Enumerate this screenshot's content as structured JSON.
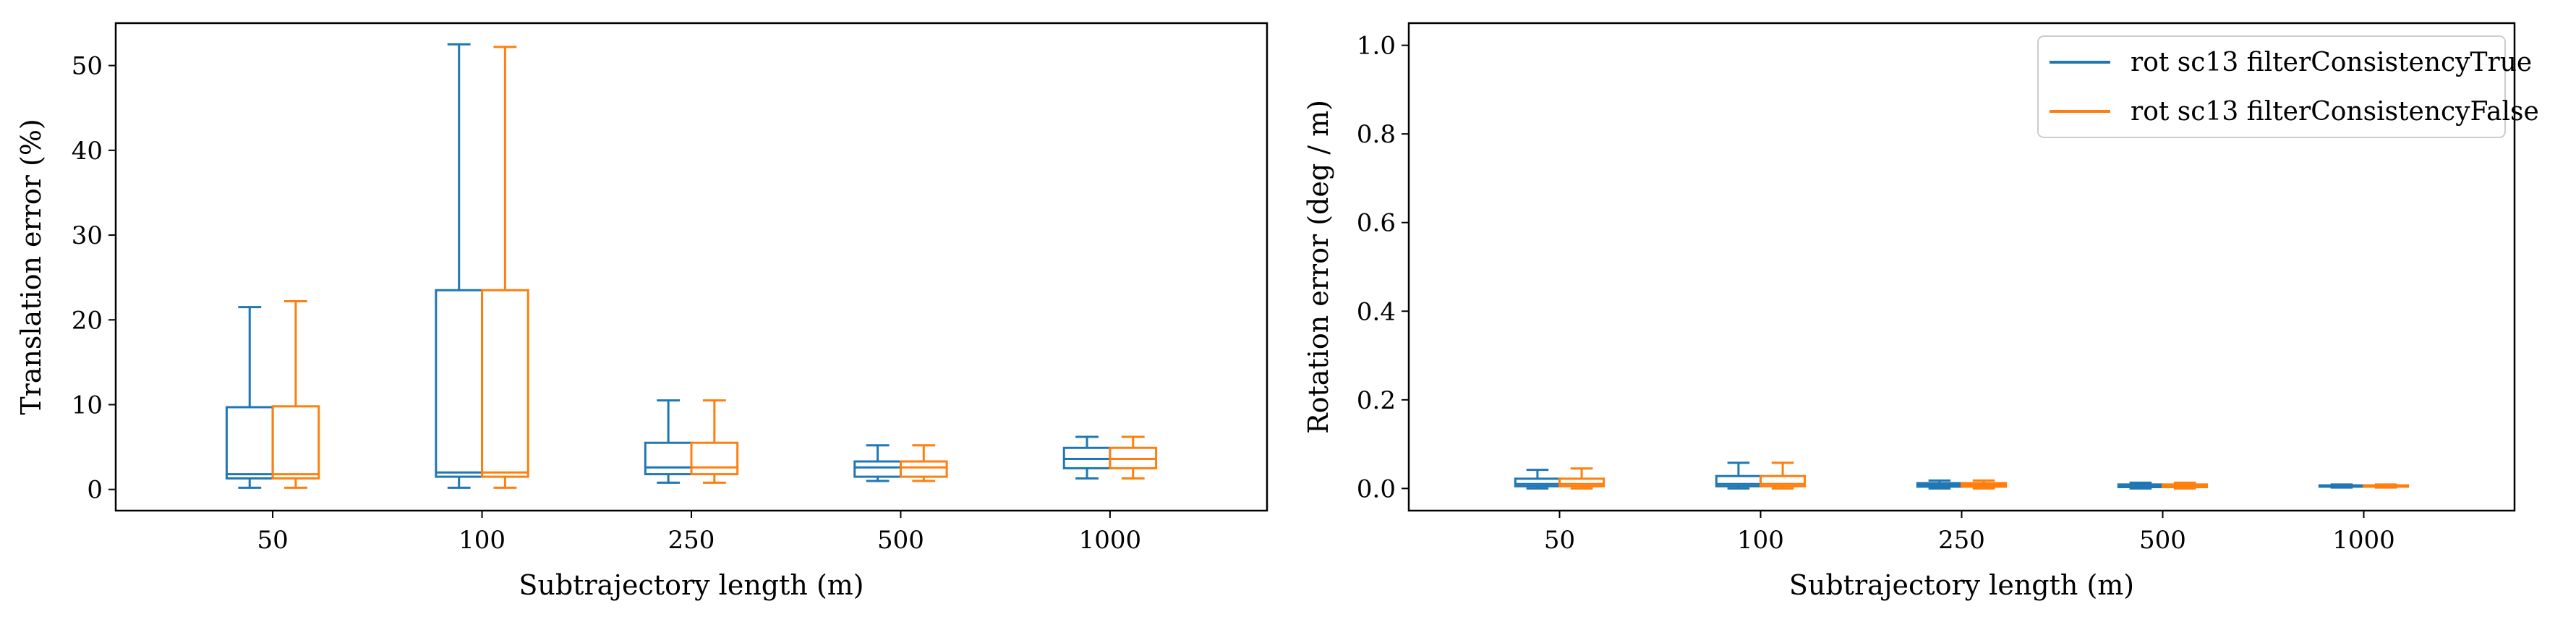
{
  "chart_data": [
    {
      "type": "boxplot",
      "xlabel": "Subtrajectory length (m)",
      "ylabel": "Translation error (%)",
      "categories": [
        "50",
        "100",
        "250",
        "500",
        "1000"
      ],
      "ylim": [
        -2.5,
        55
      ],
      "yticks": [
        0,
        10,
        20,
        30,
        40,
        50
      ],
      "grid": false,
      "series": [
        {
          "color": "#1f77b4",
          "boxes": [
            {
              "whislo": 0.2,
              "q1": 1.3,
              "med": 1.8,
              "q3": 9.7,
              "whishi": 21.5
            },
            {
              "whislo": 0.2,
              "q1": 1.5,
              "med": 2.0,
              "q3": 23.5,
              "whishi": 52.5
            },
            {
              "whislo": 0.8,
              "q1": 1.8,
              "med": 2.6,
              "q3": 5.5,
              "whishi": 10.5
            },
            {
              "whislo": 1.0,
              "q1": 1.5,
              "med": 2.6,
              "q3": 3.3,
              "whishi": 5.2
            },
            {
              "whislo": 1.3,
              "q1": 2.5,
              "med": 3.6,
              "q3": 4.9,
              "whishi": 6.2
            }
          ]
        },
        {
          "color": "#ff7f0e",
          "boxes": [
            {
              "whislo": 0.2,
              "q1": 1.3,
              "med": 1.8,
              "q3": 9.8,
              "whishi": 22.2
            },
            {
              "whislo": 0.2,
              "q1": 1.5,
              "med": 2.0,
              "q3": 23.5,
              "whishi": 52.2
            },
            {
              "whislo": 0.8,
              "q1": 1.8,
              "med": 2.6,
              "q3": 5.5,
              "whishi": 10.5
            },
            {
              "whislo": 1.0,
              "q1": 1.5,
              "med": 2.6,
              "q3": 3.3,
              "whishi": 5.2
            },
            {
              "whislo": 1.3,
              "q1": 2.5,
              "med": 3.6,
              "q3": 4.9,
              "whishi": 6.2
            }
          ]
        }
      ]
    },
    {
      "type": "boxplot",
      "xlabel": "Subtrajectory length (m)",
      "ylabel": "Rotation error (deg / m)",
      "categories": [
        "50",
        "100",
        "250",
        "500",
        "1000"
      ],
      "ylim": [
        -0.05,
        1.05
      ],
      "yticks": [
        "0.0",
        "0.2",
        "0.4",
        "0.6",
        "0.8",
        "1.0"
      ],
      "grid": false,
      "legend_position": "upper right",
      "series": [
        {
          "name": "rot sc13 filterConsistencyTrue",
          "color": "#1f77b4",
          "boxes": [
            {
              "whislo": 0.0,
              "q1": 0.005,
              "med": 0.01,
              "q3": 0.022,
              "whishi": 0.042
            },
            {
              "whislo": 0.0,
              "q1": 0.005,
              "med": 0.01,
              "q3": 0.028,
              "whishi": 0.058
            },
            {
              "whislo": 0.0,
              "q1": 0.004,
              "med": 0.008,
              "q3": 0.012,
              "whishi": 0.018
            },
            {
              "whislo": 0.0,
              "q1": 0.003,
              "med": 0.006,
              "q3": 0.009,
              "whishi": 0.013
            },
            {
              "whislo": 0.002,
              "q1": 0.004,
              "med": 0.006,
              "q3": 0.007,
              "whishi": 0.009
            }
          ]
        },
        {
          "name": "rot sc13 filterConsistencyFalse",
          "color": "#ff7f0e",
          "boxes": [
            {
              "whislo": 0.0,
              "q1": 0.005,
              "med": 0.01,
              "q3": 0.022,
              "whishi": 0.045
            },
            {
              "whislo": 0.0,
              "q1": 0.005,
              "med": 0.01,
              "q3": 0.028,
              "whishi": 0.058
            },
            {
              "whislo": 0.0,
              "q1": 0.004,
              "med": 0.008,
              "q3": 0.012,
              "whishi": 0.018
            },
            {
              "whislo": 0.0,
              "q1": 0.003,
              "med": 0.006,
              "q3": 0.009,
              "whishi": 0.013
            },
            {
              "whislo": 0.002,
              "q1": 0.004,
              "med": 0.006,
              "q3": 0.007,
              "whishi": 0.009
            }
          ]
        }
      ]
    }
  ]
}
